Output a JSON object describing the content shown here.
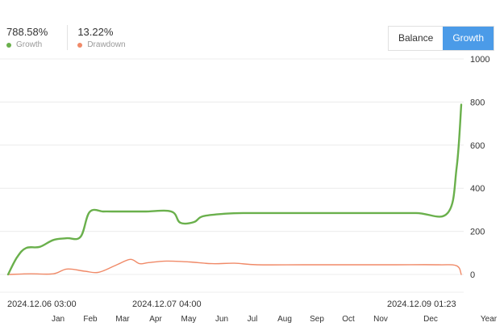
{
  "stats": {
    "growth_value": "788.58%",
    "growth_label": "Growth",
    "drawdown_value": "13.22%",
    "drawdown_label": "Drawdown"
  },
  "toggle": {
    "balance_label": "Balance",
    "growth_label": "Growth",
    "active": "Growth"
  },
  "colors": {
    "growth": "#6ab04c",
    "drawdown": "#f08a68",
    "active_button": "#4b9be8"
  },
  "chart_data": {
    "type": "line",
    "y_ticks": [
      "1000",
      "800",
      "600",
      "400",
      "200",
      "0"
    ],
    "ylim": [
      -50,
      1000
    ],
    "grid": true,
    "x_axis_labels": [
      "Jan",
      "Feb",
      "Mar",
      "Apr",
      "May",
      "Jun",
      "Jul",
      "Aug",
      "Sep",
      "Oct",
      "Nov",
      "Dec",
      "Year"
    ],
    "date_labels": [
      "2024.12.06 03:00",
      "2024.12.07 04:00",
      "2024.12.09 01:23"
    ],
    "series": [
      {
        "name": "Growth",
        "color": "#6ab04c",
        "x": [
          0,
          0.02,
          0.04,
          0.07,
          0.1,
          0.13,
          0.16,
          0.18,
          0.21,
          0.23,
          0.3,
          0.36,
          0.38,
          0.41,
          0.43,
          0.48,
          0.52,
          0.6,
          0.7,
          0.8,
          0.9,
          0.97,
          0.99,
          1.0
        ],
        "values": [
          0,
          80,
          123,
          128,
          160,
          168,
          175,
          290,
          292,
          292,
          292,
          292,
          240,
          243,
          270,
          282,
          285,
          285,
          285,
          285,
          285,
          285,
          500,
          788
        ]
      },
      {
        "name": "Drawdown",
        "color": "#f08a68",
        "x": [
          0,
          0.05,
          0.1,
          0.13,
          0.17,
          0.2,
          0.24,
          0.27,
          0.29,
          0.31,
          0.35,
          0.4,
          0.45,
          0.5,
          0.55,
          0.65,
          0.75,
          0.85,
          0.95,
          0.99,
          1.0
        ],
        "values": [
          0,
          3,
          3,
          25,
          15,
          10,
          45,
          70,
          50,
          55,
          62,
          58,
          50,
          52,
          45,
          45,
          45,
          45,
          45,
          40,
          0
        ]
      }
    ]
  }
}
